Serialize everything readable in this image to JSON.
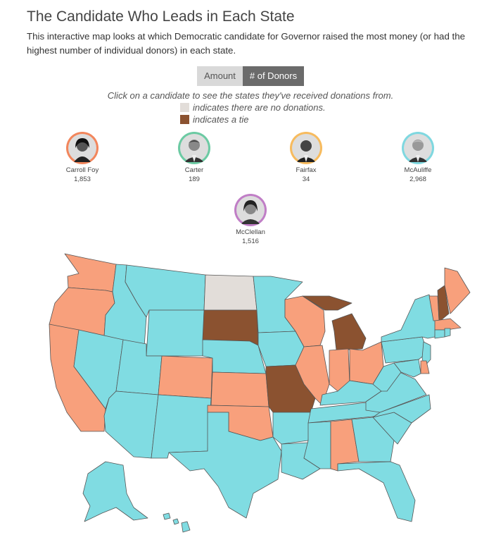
{
  "header": {
    "title": "The Candidate Who Leads in Each State",
    "subtitle": "This interactive map looks at which Democratic candidate for Governor raised the most money (or had the highest number of individual donors) in each state."
  },
  "toggle": {
    "amount_label": "Amount",
    "donors_label": "# of Donors",
    "selected": "# of Donors"
  },
  "instruction": "Click on a candidate to see the states they've received donations from.",
  "legend": {
    "none_label": "indicates there are no donations.",
    "tie_label": "indicates a tie",
    "none_color": "#e2ddd9",
    "tie_color": "#8b5230"
  },
  "candidates": [
    {
      "name": "Carroll Foy",
      "count": "1,853",
      "color": "#f2865c"
    },
    {
      "name": "Carter",
      "count": "189",
      "color": "#6ccaa3"
    },
    {
      "name": "Fairfax",
      "count": "34",
      "color": "#f7bb5e"
    },
    {
      "name": "McAuliffe",
      "count": "2,968",
      "color": "#7fd8e0"
    },
    {
      "name": "McClellan",
      "count": "1,516",
      "color": "#c07ec6"
    }
  ],
  "map_colors": {
    "mcauliffe": "#80dce2",
    "carroll_foy": "#f8a07c",
    "tie": "#8b5230",
    "none": "#e2ddd9"
  }
}
